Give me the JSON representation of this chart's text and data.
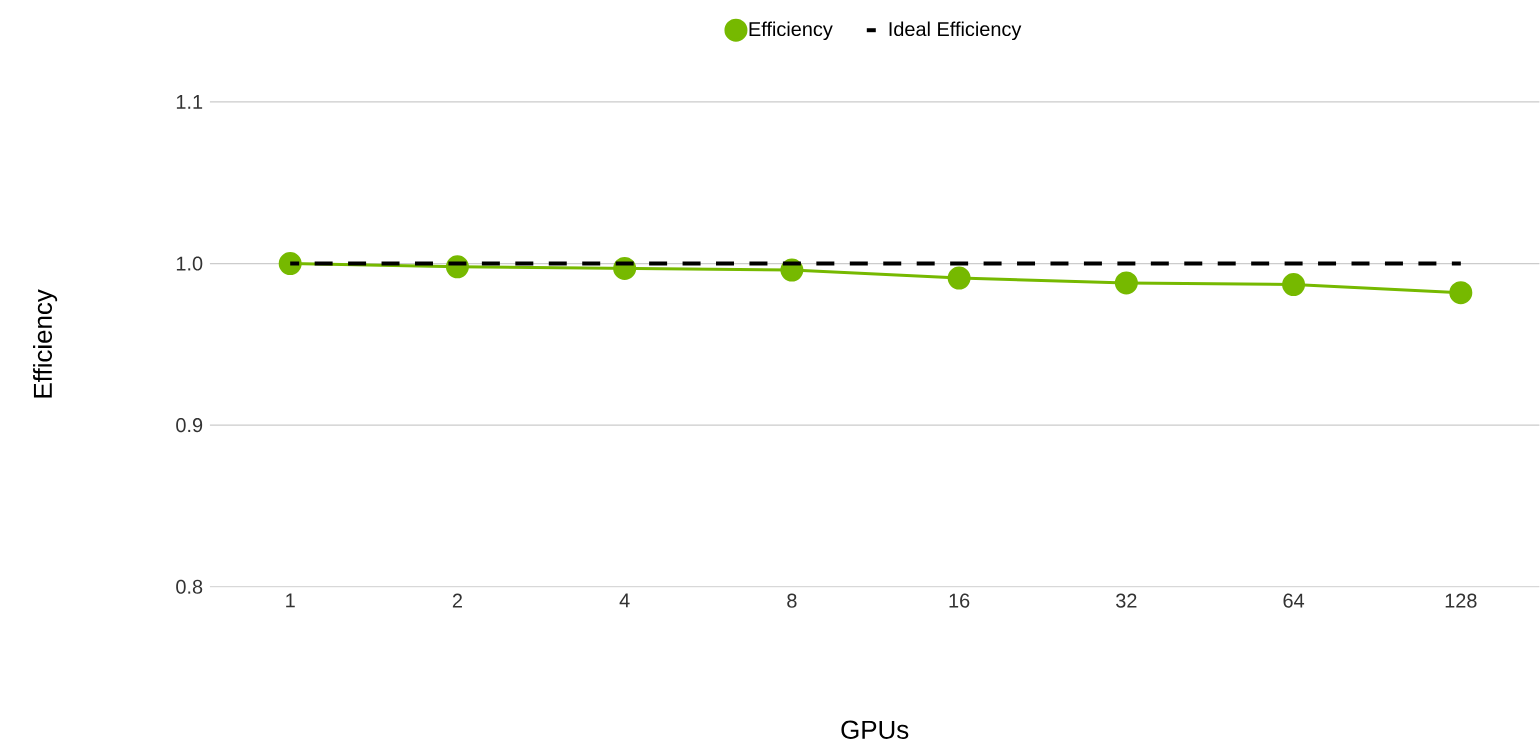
{
  "chart_data": {
    "type": "line",
    "xlabel": "GPUs",
    "ylabel": "Efficiency",
    "categories": [
      "1",
      "2",
      "4",
      "8",
      "16",
      "32",
      "64",
      "128"
    ],
    "series": [
      {
        "name": "Efficiency",
        "color": "#76b900",
        "marker": "circle",
        "line_style": "solid",
        "values": [
          1.0,
          0.998,
          0.997,
          0.996,
          0.991,
          0.988,
          0.987,
          0.982
        ]
      },
      {
        "name": "Ideal Efficiency",
        "color": "#000000",
        "marker": "none",
        "line_style": "dashed",
        "values": [
          1.0,
          1.0,
          1.0,
          1.0,
          1.0,
          1.0,
          1.0,
          1.0
        ]
      }
    ],
    "ylim": [
      0.8,
      1.1
    ],
    "yticks": [
      0.8,
      0.9,
      {
        "value": 1.0,
        "label": "1.0"
      },
      1.1
    ],
    "grid": "y",
    "legend": "top"
  }
}
